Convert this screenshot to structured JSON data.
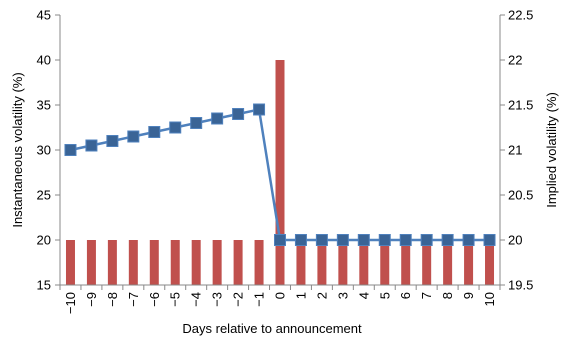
{
  "chart_data": {
    "type": "bar+line",
    "x": [
      -10,
      -9,
      -8,
      -7,
      -6,
      -5,
      -4,
      -3,
      -2,
      -1,
      0,
      1,
      2,
      3,
      4,
      5,
      6,
      7,
      8,
      9,
      10
    ],
    "x_tick_labels": [
      "−10",
      "−9",
      "−8",
      "−7",
      "−6",
      "−5",
      "−4",
      "−3",
      "−2",
      "−1",
      "0",
      "1",
      "2",
      "3",
      "4",
      "5",
      "6",
      "7",
      "8",
      "9",
      "10"
    ],
    "xlabel": "Days relative to announcement",
    "ylabel_left": "Instantaneous volatility (%)",
    "ylabel_right": "Implied volatility (%)",
    "ylim_left": [
      15,
      45
    ],
    "yticks_left": [
      "15",
      "20",
      "25",
      "30",
      "35",
      "40",
      "45"
    ],
    "ylim_right": [
      19.5,
      22.5
    ],
    "yticks_right": [
      "19.5",
      "20",
      "20.5",
      "21",
      "21.5",
      "22",
      "22.5"
    ],
    "series": [
      {
        "type": "bar",
        "axis": "left",
        "color": "#c0504d",
        "values": [
          20,
          20,
          20,
          20,
          20,
          20,
          20,
          20,
          20,
          20,
          40,
          20,
          20,
          20,
          20,
          20,
          20,
          20,
          20,
          20,
          20
        ]
      },
      {
        "type": "line",
        "axis": "right",
        "color": "#4f81bd",
        "marker_color": "#3a6496",
        "marker": "square",
        "values": [
          21.0,
          21.05,
          21.1,
          21.15,
          21.2,
          21.25,
          21.3,
          21.35,
          21.4,
          21.45,
          20.0,
          20.0,
          20.0,
          20.0,
          20.0,
          20.0,
          20.0,
          20.0,
          20.0,
          20.0,
          20.0
        ]
      }
    ],
    "grid": false,
    "legend": "none"
  }
}
